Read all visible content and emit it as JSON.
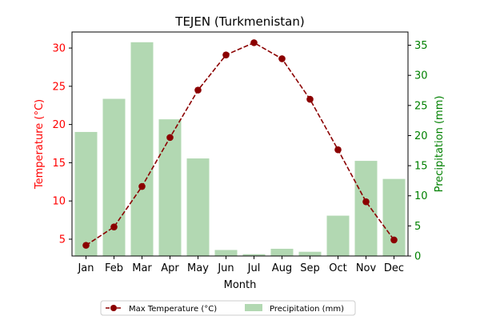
{
  "chart_data": {
    "type": "bar+line",
    "title": "TEJEN (Turkmenistan)",
    "xlabel": "Month",
    "ylabel_left": "Temperature (°C)",
    "ylabel_right": "Precipitation (mm)",
    "categories": [
      "Jan",
      "Feb",
      "Mar",
      "Apr",
      "May",
      "Jun",
      "Jul",
      "Aug",
      "Sep",
      "Oct",
      "Nov",
      "Dec"
    ],
    "series": [
      {
        "name": "Max Temperature (°C)",
        "type": "line",
        "axis": "left",
        "color": "#8b0000",
        "values": [
          4.2,
          6.6,
          11.9,
          18.3,
          24.5,
          29.1,
          30.7,
          28.6,
          23.3,
          16.7,
          9.9,
          4.9
        ]
      },
      {
        "name": "Precipitation (mm)",
        "type": "bar",
        "axis": "right",
        "color": "#b2d8b2",
        "values": [
          20.6,
          26.1,
          35.5,
          22.7,
          16.2,
          1.0,
          0.3,
          1.2,
          0.7,
          6.7,
          15.8,
          12.8
        ]
      }
    ],
    "ylim_left": [
      2.8,
      32.1
    ],
    "yticks_left": [
      5,
      10,
      15,
      20,
      25,
      30
    ],
    "ylim_right": [
      0,
      37.2
    ],
    "yticks_right": [
      0,
      5,
      10,
      15,
      20,
      25,
      30,
      35
    ],
    "left_axis_color": "#ff0000",
    "right_axis_color": "#008000",
    "legend_position": "bottom-center",
    "grid": false
  }
}
